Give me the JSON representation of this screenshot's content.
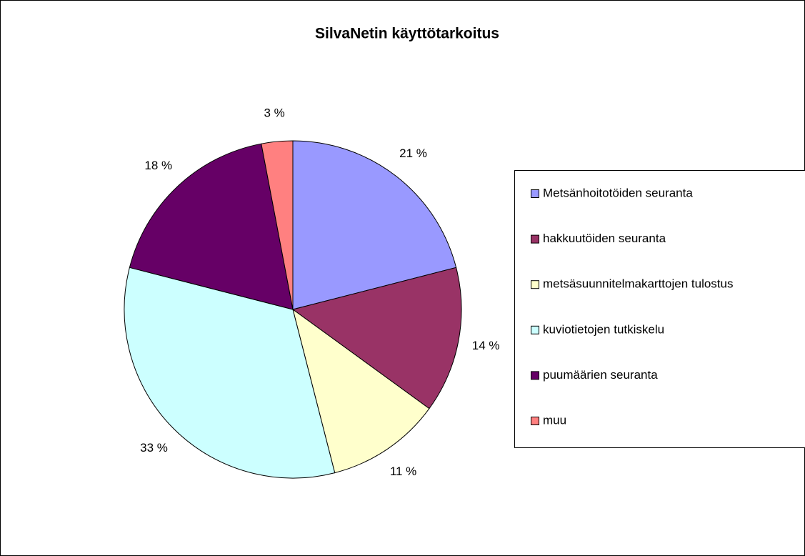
{
  "chart_data": {
    "type": "pie",
    "title": "SilvaNetin käyttötarkoitus",
    "categories": [
      "Metsänhoitotöiden seuranta",
      "hakkuutöiden seuranta",
      "metsäsuunnitelmakarttojen tulostus",
      "kuviotietojen tutkiskelu",
      "puumäärien seuranta",
      "muu"
    ],
    "values": [
      21,
      14,
      11,
      33,
      18,
      3
    ],
    "value_labels": [
      "21 %",
      "14 %",
      "11 %",
      "33 %",
      "18 %",
      "3 %"
    ],
    "colors": [
      "#9999ff",
      "#993366",
      "#ffffcc",
      "#ccffff",
      "#660066",
      "#ff8080"
    ],
    "legend": "right"
  }
}
